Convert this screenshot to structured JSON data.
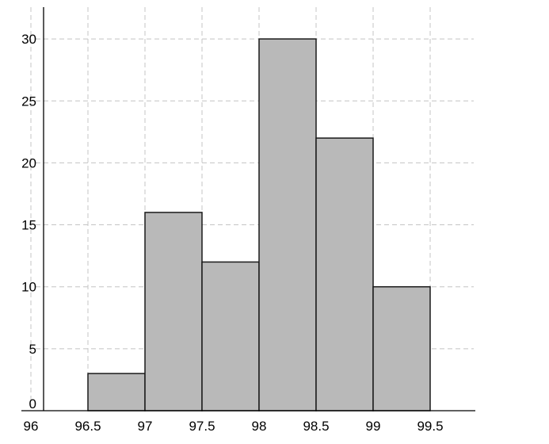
{
  "chart_data": {
    "type": "bar",
    "subtype": "histogram",
    "bins": [
      {
        "from": 96.5,
        "to": 97.0,
        "value": 3
      },
      {
        "from": 97.0,
        "to": 97.5,
        "value": 16
      },
      {
        "from": 97.5,
        "to": 98.0,
        "value": 12
      },
      {
        "from": 98.0,
        "to": 98.5,
        "value": 30
      },
      {
        "from": 98.5,
        "to": 99.0,
        "value": 22
      },
      {
        "from": 99.0,
        "to": 99.5,
        "value": 10
      }
    ],
    "x_ticks": [
      "96",
      "96.5",
      "97",
      "97.5",
      "98",
      "98.5",
      "99",
      "99.5"
    ],
    "y_ticks": [
      "0",
      "5",
      "10",
      "15",
      "20",
      "25",
      "30"
    ],
    "xlim": [
      96,
      99.9
    ],
    "ylim": [
      0,
      32.5
    ],
    "grid": true,
    "bar_color": "#b9b9b9",
    "title": "",
    "xlabel": "",
    "ylabel": ""
  }
}
